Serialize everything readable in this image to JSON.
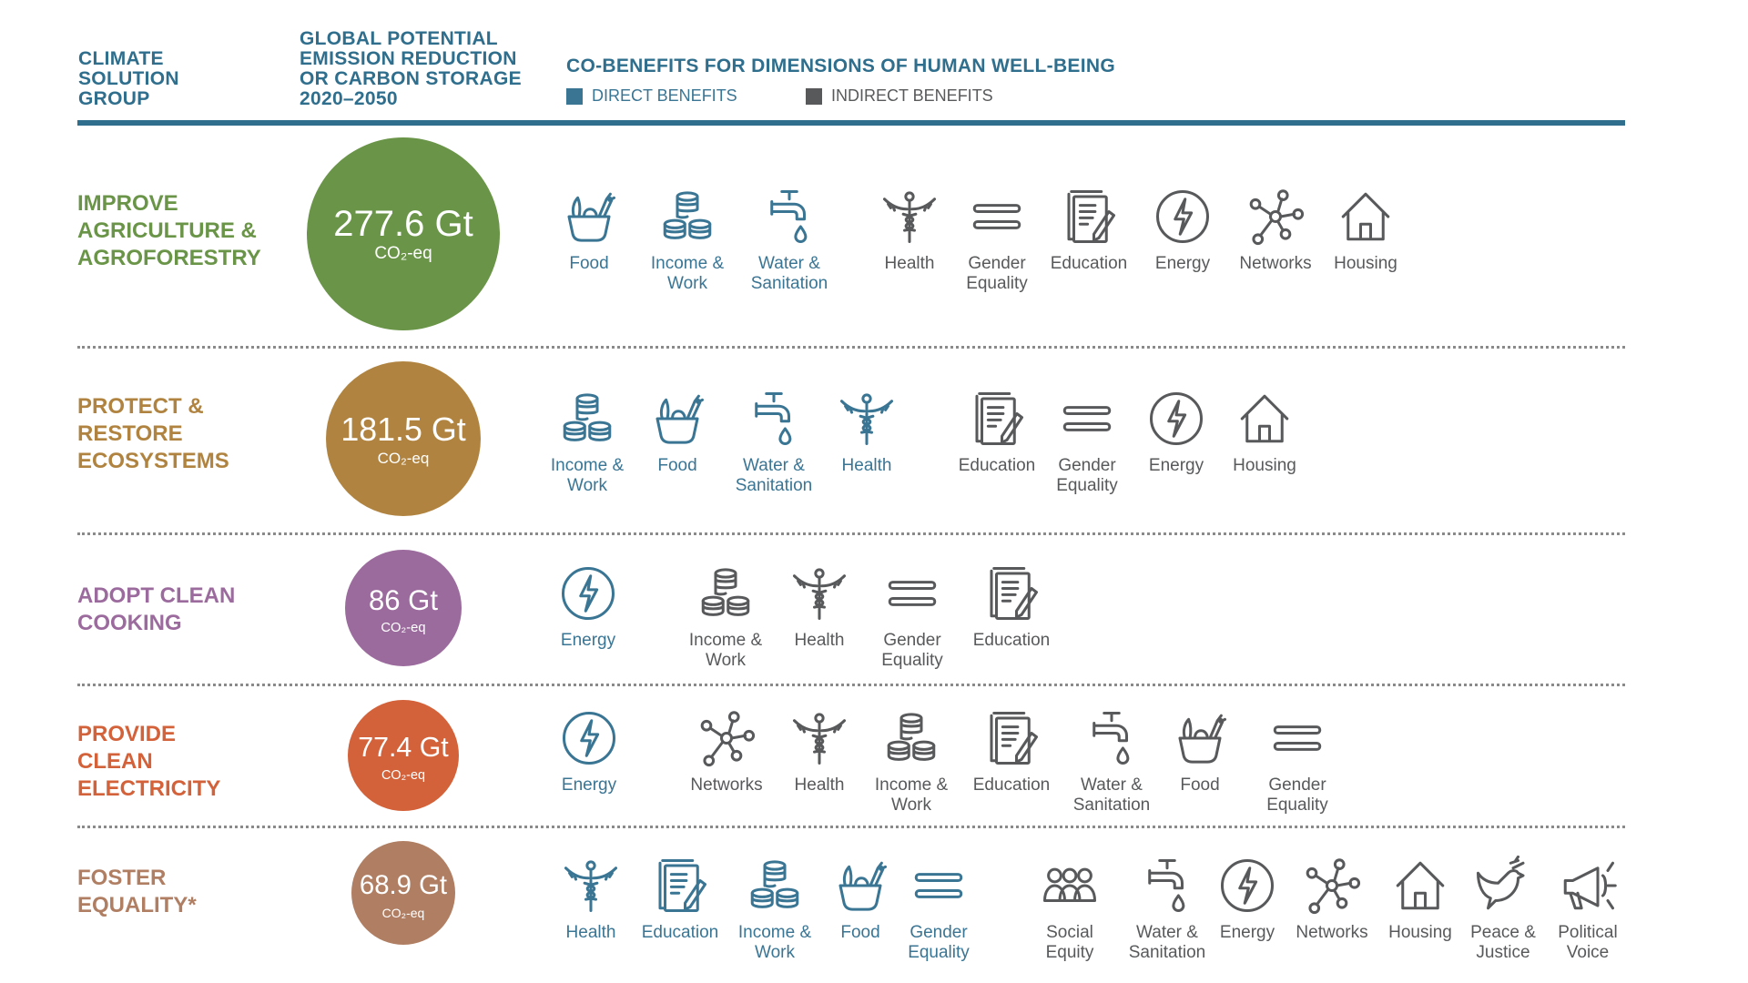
{
  "header": {
    "col1": [
      "CLIMATE",
      "SOLUTION",
      "GROUP"
    ],
    "col2": [
      "GLOBAL POTENTIAL",
      "EMISSION REDUCTION",
      "OR CARBON STORAGE",
      "2020–2050"
    ],
    "col3": "CO-BENEFITS FOR DIMENSIONS OF HUMAN WELL-BEING",
    "legend": {
      "direct": "DIRECT BENEFITS",
      "indirect": "INDIRECT BENEFITS",
      "direct_color": "#3a7594",
      "indirect_color": "#58595b"
    }
  },
  "unit": "CO₂-eq",
  "groups": [
    {
      "name": [
        "IMPROVE",
        "AGRICULTURE &",
        "AGROFORESTRY"
      ],
      "value": "277.6 Gt",
      "color": "#6a9548",
      "benefits": [
        {
          "icon": "food",
          "label": [
            "Food"
          ],
          "type": "direct"
        },
        {
          "icon": "income",
          "label": [
            "Income &",
            "Work"
          ],
          "type": "direct"
        },
        {
          "icon": "water",
          "label": [
            "Water &",
            "Sanitation"
          ],
          "type": "direct"
        },
        {
          "icon": "health",
          "label": [
            "Health"
          ],
          "type": "indirect"
        },
        {
          "icon": "gender",
          "label": [
            "Gender",
            "Equality"
          ],
          "type": "indirect"
        },
        {
          "icon": "education",
          "label": [
            "Education"
          ],
          "type": "indirect"
        },
        {
          "icon": "energy",
          "label": [
            "Energy"
          ],
          "type": "indirect"
        },
        {
          "icon": "networks",
          "label": [
            "Networks"
          ],
          "type": "indirect"
        },
        {
          "icon": "housing",
          "label": [
            "Housing"
          ],
          "type": "indirect"
        }
      ]
    },
    {
      "name": [
        "PROTECT &",
        "RESTORE",
        "ECOSYSTEMS"
      ],
      "value": "181.5 Gt",
      "color": "#b08440",
      "benefits": [
        {
          "icon": "income",
          "label": [
            "Income &",
            "Work"
          ],
          "type": "direct"
        },
        {
          "icon": "food",
          "label": [
            "Food"
          ],
          "type": "direct"
        },
        {
          "icon": "water",
          "label": [
            "Water &",
            "Sanitation"
          ],
          "type": "direct"
        },
        {
          "icon": "health",
          "label": [
            "Health"
          ],
          "type": "direct"
        },
        {
          "icon": "education",
          "label": [
            "Education"
          ],
          "type": "indirect"
        },
        {
          "icon": "gender",
          "label": [
            "Gender",
            "Equality"
          ],
          "type": "indirect"
        },
        {
          "icon": "energy",
          "label": [
            "Energy"
          ],
          "type": "indirect"
        },
        {
          "icon": "housing",
          "label": [
            "Housing"
          ],
          "type": "indirect"
        }
      ]
    },
    {
      "name": [
        "ADOPT CLEAN",
        "COOKING"
      ],
      "value": "86 Gt",
      "color": "#9c6b9e",
      "benefits": [
        {
          "icon": "energy",
          "label": [
            "Energy"
          ],
          "type": "direct"
        },
        {
          "icon": "income",
          "label": [
            "Income &",
            "Work"
          ],
          "type": "indirect"
        },
        {
          "icon": "health",
          "label": [
            "Health"
          ],
          "type": "indirect"
        },
        {
          "icon": "gender",
          "label": [
            "Gender",
            "Equality"
          ],
          "type": "indirect"
        },
        {
          "icon": "education",
          "label": [
            "Education"
          ],
          "type": "indirect"
        }
      ]
    },
    {
      "name": [
        "PROVIDE",
        "CLEAN",
        "ELECTRICITY"
      ],
      "value": "77.4 Gt",
      "color": "#d3623a",
      "benefits": [
        {
          "icon": "energy",
          "label": [
            "Energy"
          ],
          "type": "direct"
        },
        {
          "icon": "networks",
          "label": [
            "Networks"
          ],
          "type": "indirect"
        },
        {
          "icon": "health",
          "label": [
            "Health"
          ],
          "type": "indirect"
        },
        {
          "icon": "income",
          "label": [
            "Income &",
            "Work"
          ],
          "type": "indirect"
        },
        {
          "icon": "education",
          "label": [
            "Education"
          ],
          "type": "indirect"
        },
        {
          "icon": "water",
          "label": [
            "Water &",
            "Sanitation"
          ],
          "type": "indirect"
        },
        {
          "icon": "food",
          "label": [
            "Food"
          ],
          "type": "indirect"
        },
        {
          "icon": "gender",
          "label": [
            "Gender",
            "Equality"
          ],
          "type": "indirect"
        }
      ]
    },
    {
      "name": [
        "FOSTER",
        "EQUALITY*"
      ],
      "value": "68.9 Gt",
      "color": "#b07f63",
      "benefits": [
        {
          "icon": "health",
          "label": [
            "Health"
          ],
          "type": "direct"
        },
        {
          "icon": "education",
          "label": [
            "Education"
          ],
          "type": "direct"
        },
        {
          "icon": "income",
          "label": [
            "Income &",
            "Work"
          ],
          "type": "direct"
        },
        {
          "icon": "food",
          "label": [
            "Food"
          ],
          "type": "direct"
        },
        {
          "icon": "gender",
          "label": [
            "Gender",
            "Equality"
          ],
          "type": "direct"
        },
        {
          "icon": "social",
          "label": [
            "Social",
            "Equity"
          ],
          "type": "indirect"
        },
        {
          "icon": "water",
          "label": [
            "Water &",
            "Sanitation"
          ],
          "type": "indirect"
        },
        {
          "icon": "energy",
          "label": [
            "Energy"
          ],
          "type": "indirect"
        },
        {
          "icon": "networks",
          "label": [
            "Networks"
          ],
          "type": "indirect"
        },
        {
          "icon": "housing",
          "label": [
            "Housing"
          ],
          "type": "indirect"
        },
        {
          "icon": "peace",
          "label": [
            "Peace &",
            "Justice"
          ],
          "type": "indirect"
        },
        {
          "icon": "voice",
          "label": [
            "Political",
            "Voice"
          ],
          "type": "indirect"
        }
      ]
    }
  ]
}
